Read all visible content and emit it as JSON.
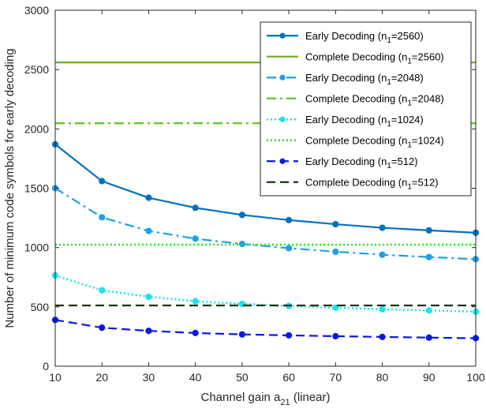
{
  "chart_data": {
    "type": "line",
    "xlabel": "Channel gain a",
    "xlabel_sub": "21",
    "xlabel_suffix": " (linear)",
    "ylabel": "Number of minimum code symbols for early decoding",
    "xlim": [
      10,
      100
    ],
    "ylim": [
      0,
      3000
    ],
    "xticks": [
      10,
      20,
      30,
      40,
      50,
      60,
      70,
      80,
      90,
      100
    ],
    "yticks": [
      0,
      500,
      1000,
      1500,
      2000,
      2500,
      3000
    ],
    "grid": false,
    "legend_position": "top-right",
    "x": [
      10,
      20,
      30,
      40,
      50,
      60,
      70,
      80,
      90,
      100
    ],
    "series": [
      {
        "legend_prefix": "Early Decoding (n",
        "legend_sub": "1",
        "legend_suffix": "=2560)",
        "color": "#0072BD",
        "dash": "solid",
        "marker": true,
        "values": [
          1870,
          1560,
          1420,
          1335,
          1275,
          1232,
          1197,
          1167,
          1145,
          1125
        ]
      },
      {
        "legend_prefix": "Complete Decoding (n",
        "legend_sub": "1",
        "legend_suffix": "=2560)",
        "color": "#77AC30",
        "dash": "solid",
        "marker": false,
        "values": [
          2560,
          2560,
          2560,
          2560,
          2560,
          2560,
          2560,
          2560,
          2560,
          2560
        ]
      },
      {
        "legend_prefix": "Early Decoding (n",
        "legend_sub": "1",
        "legend_suffix": "=2048)",
        "color": "#1F9EEA",
        "dash": "dashdot",
        "marker": true,
        "values": [
          1500,
          1255,
          1140,
          1075,
          1030,
          995,
          965,
          940,
          920,
          902
        ]
      },
      {
        "legend_prefix": "Complete Decoding (n",
        "legend_sub": "1",
        "legend_suffix": "=2048)",
        "color": "#5AC81E",
        "dash": "dashdot",
        "marker": false,
        "values": [
          2048,
          2048,
          2048,
          2048,
          2048,
          2048,
          2048,
          2048,
          2048,
          2048
        ]
      },
      {
        "legend_prefix": "Early Decoding (n",
        "legend_sub": "1",
        "legend_suffix": "=1024)",
        "color": "#19E3F0",
        "dash": "dotted",
        "marker": true,
        "values": [
          765,
          640,
          585,
          548,
          525,
          508,
          493,
          480,
          470,
          460
        ]
      },
      {
        "legend_prefix": "Complete Decoding (n",
        "legend_sub": "1",
        "legend_suffix": "=1024)",
        "color": "#1EE61E",
        "dash": "dotted",
        "marker": false,
        "values": [
          1024,
          1024,
          1024,
          1024,
          1024,
          1024,
          1024,
          1024,
          1024,
          1024
        ]
      },
      {
        "legend_prefix": "Early Decoding (n",
        "legend_sub": "1",
        "legend_suffix": "=512)",
        "color": "#0A19DC",
        "dash": "dashed",
        "marker": true,
        "values": [
          390,
          325,
          298,
          280,
          268,
          260,
          253,
          247,
          241,
          236
        ]
      },
      {
        "legend_prefix": "Complete Decoding (n",
        "legend_sub": "1",
        "legend_suffix": "=512)",
        "color": "#1E3214",
        "dash": "dashed",
        "marker": false,
        "values": [
          512,
          512,
          512,
          512,
          512,
          512,
          512,
          512,
          512,
          512
        ]
      }
    ]
  }
}
